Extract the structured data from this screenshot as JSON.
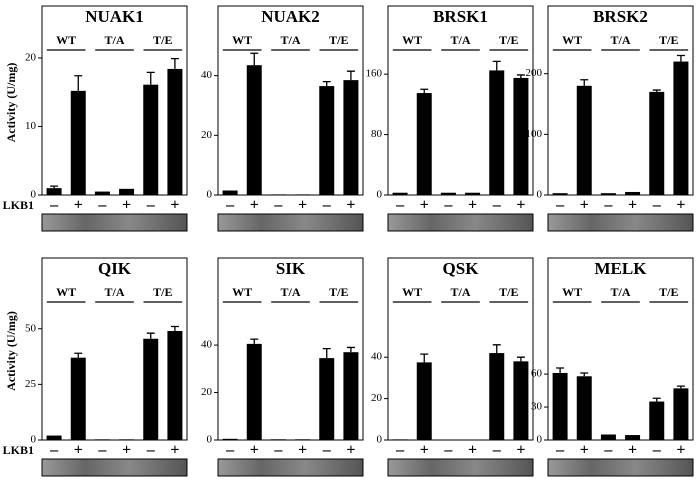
{
  "chart_data": [
    {
      "type": "bar",
      "title": "NUAK1",
      "y_label": "Activity (U/mg)",
      "x_label": "LKB1",
      "groups": [
        "WT",
        "T/A",
        "T/E"
      ],
      "categories": [
        "–",
        "+",
        "–",
        "+",
        "–",
        "+"
      ],
      "values": [
        1.0,
        15.2,
        0.5,
        0.9,
        16.1,
        18.4
      ],
      "errors": [
        0.3,
        2.2,
        null,
        null,
        1.8,
        1.5
      ],
      "ylim": [
        0,
        27
      ],
      "yticks": [
        0,
        10,
        20
      ],
      "color": "#000000"
    },
    {
      "type": "bar",
      "title": "NUAK2",
      "groups": [
        "WT",
        "T/A",
        "T/E"
      ],
      "categories": [
        "–",
        "+",
        "–",
        "+",
        "–",
        "+"
      ],
      "values": [
        1.5,
        43.5,
        0.2,
        0.2,
        36.5,
        38.5
      ],
      "errors": [
        null,
        4,
        null,
        null,
        1.5,
        3
      ],
      "ylim": [
        0,
        62
      ],
      "yticks": [
        0,
        20,
        40
      ],
      "color": "#000000"
    },
    {
      "type": "bar",
      "title": "BRSK1",
      "groups": [
        "WT",
        "T/A",
        "T/E"
      ],
      "categories": [
        "–",
        "+",
        "–",
        "+",
        "–",
        "+"
      ],
      "values": [
        3,
        135,
        3,
        3,
        165,
        155
      ],
      "errors": [
        null,
        5,
        null,
        null,
        12,
        4
      ],
      "ylim": [
        0,
        245
      ],
      "yticks": [
        0,
        80,
        160
      ],
      "color": "#000000"
    },
    {
      "type": "bar",
      "title": "BRSK2",
      "groups": [
        "WT",
        "T/A",
        "T/E"
      ],
      "categories": [
        "–",
        "+",
        "–",
        "+",
        "–",
        "+"
      ],
      "values": [
        3,
        180,
        3,
        5,
        170,
        220
      ],
      "errors": [
        null,
        10,
        null,
        null,
        3,
        10
      ],
      "ylim": [
        0,
        305
      ],
      "yticks": [
        0,
        100,
        200
      ],
      "color": "#000000"
    },
    {
      "type": "bar",
      "title": "QIK",
      "y_label": "Activity (U/mg)",
      "x_label": "LKB1",
      "groups": [
        "WT",
        "T/A",
        "T/E"
      ],
      "categories": [
        "–",
        "+",
        "–",
        "+",
        "–",
        "+"
      ],
      "values": [
        2,
        37,
        0.3,
        0.3,
        45.5,
        49
      ],
      "errors": [
        null,
        2,
        null,
        null,
        2.5,
        2
      ],
      "ylim": [
        0,
        80
      ],
      "yticks": [
        0,
        25,
        50
      ],
      "color": "#000000"
    },
    {
      "type": "bar",
      "title": "SIK",
      "groups": [
        "WT",
        "T/A",
        "T/E"
      ],
      "categories": [
        "–",
        "+",
        "–",
        "+",
        "–",
        "+"
      ],
      "values": [
        0.5,
        40.5,
        0.3,
        0.3,
        34.5,
        37
      ],
      "errors": [
        null,
        2,
        null,
        null,
        4,
        2
      ],
      "ylim": [
        0,
        75
      ],
      "yticks": [
        0,
        20,
        40
      ],
      "color": "#000000"
    },
    {
      "type": "bar",
      "title": "QSK",
      "groups": [
        "WT",
        "T/A",
        "T/E"
      ],
      "categories": [
        "–",
        "+",
        "–",
        "+",
        "–",
        "+"
      ],
      "values": [
        0.3,
        37.5,
        0,
        0,
        42,
        38
      ],
      "errors": [
        null,
        4,
        null,
        null,
        4,
        2
      ],
      "ylim": [
        0,
        86
      ],
      "yticks": [
        0,
        20,
        40
      ],
      "color": "#000000"
    },
    {
      "type": "bar",
      "title": "MELK",
      "groups": [
        "WT",
        "T/A",
        "T/E"
      ],
      "categories": [
        "–",
        "+",
        "–",
        "+",
        "–",
        "+"
      ],
      "values": [
        61,
        58,
        5,
        4.5,
        35,
        47
      ],
      "errors": [
        4.5,
        3,
        null,
        null,
        3,
        2
      ],
      "ylim": [
        0,
        162
      ],
      "yticks": [
        0,
        30,
        60
      ],
      "color": "#000000"
    }
  ]
}
